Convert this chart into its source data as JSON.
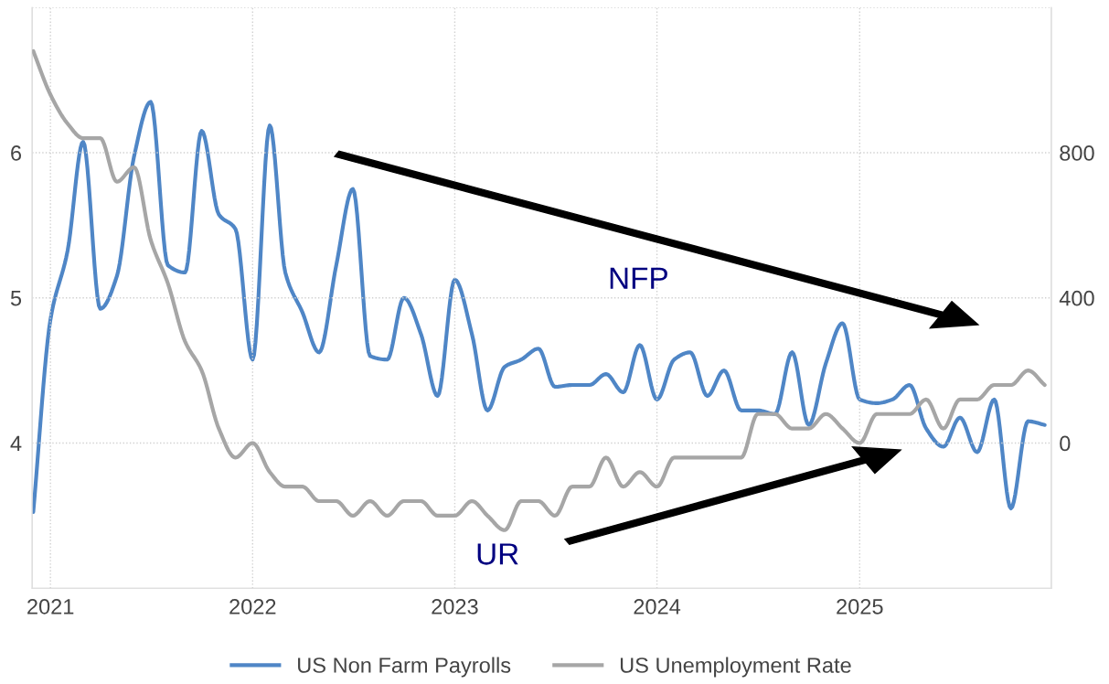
{
  "chart_data": {
    "type": "line",
    "x": [
      "2020-12",
      "2021-01",
      "2021-02",
      "2021-03",
      "2021-04",
      "2021-05",
      "2021-06",
      "2021-07",
      "2021-08",
      "2021-09",
      "2021-10",
      "2021-11",
      "2021-12",
      "2022-01",
      "2022-02",
      "2022-03",
      "2022-04",
      "2022-05",
      "2022-06",
      "2022-07",
      "2022-08",
      "2022-09",
      "2022-10",
      "2022-11",
      "2022-12",
      "2023-01",
      "2023-02",
      "2023-03",
      "2023-04",
      "2023-05",
      "2023-06",
      "2023-07",
      "2023-08",
      "2023-09",
      "2023-10",
      "2023-11",
      "2023-12",
      "2024-01",
      "2024-02",
      "2024-03",
      "2024-04",
      "2024-05",
      "2024-06",
      "2024-07",
      "2024-08",
      "2024-09",
      "2024-10",
      "2024-11",
      "2024-12",
      "2025-01",
      "2025-02",
      "2025-03",
      "2025-04",
      "2025-05",
      "2025-06",
      "2025-07",
      "2025-08",
      "2025-09",
      "2025-10",
      "2025-11",
      "2025-12"
    ],
    "series": [
      {
        "name": "US Non Farm Payrolls",
        "color": "#4f86c6",
        "axis": "y2",
        "values": [
          -190,
          340,
          530,
          830,
          370,
          460,
          790,
          940,
          490,
          470,
          860,
          630,
          590,
          230,
          875,
          470,
          360,
          250,
          490,
          700,
          240,
          230,
          400,
          300,
          130,
          450,
          300,
          90,
          210,
          230,
          260,
          155,
          160,
          160,
          190,
          140,
          270,
          120,
          230,
          250,
          130,
          200,
          90,
          90,
          80,
          250,
          50,
          220,
          330,
          120,
          110,
          120,
          160,
          40,
          -10,
          70,
          -25,
          120,
          -180,
          60,
          50
        ]
      },
      {
        "name": "US Unemployment Rate",
        "color": "#a6a6a6",
        "values": [
          6.7,
          6.4,
          6.2,
          6.1,
          6.1,
          5.8,
          5.9,
          5.4,
          5.1,
          4.7,
          4.5,
          4.1,
          3.9,
          4.0,
          3.8,
          3.7,
          3.7,
          3.6,
          3.6,
          3.5,
          3.6,
          3.5,
          3.6,
          3.6,
          3.5,
          3.5,
          3.6,
          3.5,
          3.4,
          3.6,
          3.6,
          3.5,
          3.7,
          3.7,
          3.9,
          3.7,
          3.8,
          3.7,
          3.9,
          3.9,
          3.9,
          3.9,
          3.9,
          4.2,
          4.2,
          4.1,
          4.1,
          4.2,
          4.1,
          4.0,
          4.2,
          4.2,
          4.2,
          4.3,
          4.1,
          4.3,
          4.3,
          4.4,
          4.4,
          4.5,
          4.4
        ]
      }
    ],
    "xlim": [
      "2020-11-29",
      "2025-12-13"
    ],
    "xticks": [
      "2021",
      "2022",
      "2023",
      "2024",
      "2025"
    ],
    "ylim": [
      3,
      7
    ],
    "yticks": [
      4,
      5,
      6,
      {
        "value": 7,
        "label": null
      }
    ],
    "y2lim": [
      -400,
      1200
    ],
    "y2ticks": [
      0,
      400,
      800
    ],
    "annotations": [
      "NFP",
      "UR"
    ],
    "grid": true,
    "legend": "bottom",
    "line_style": "solid",
    "marker": "none"
  }
}
